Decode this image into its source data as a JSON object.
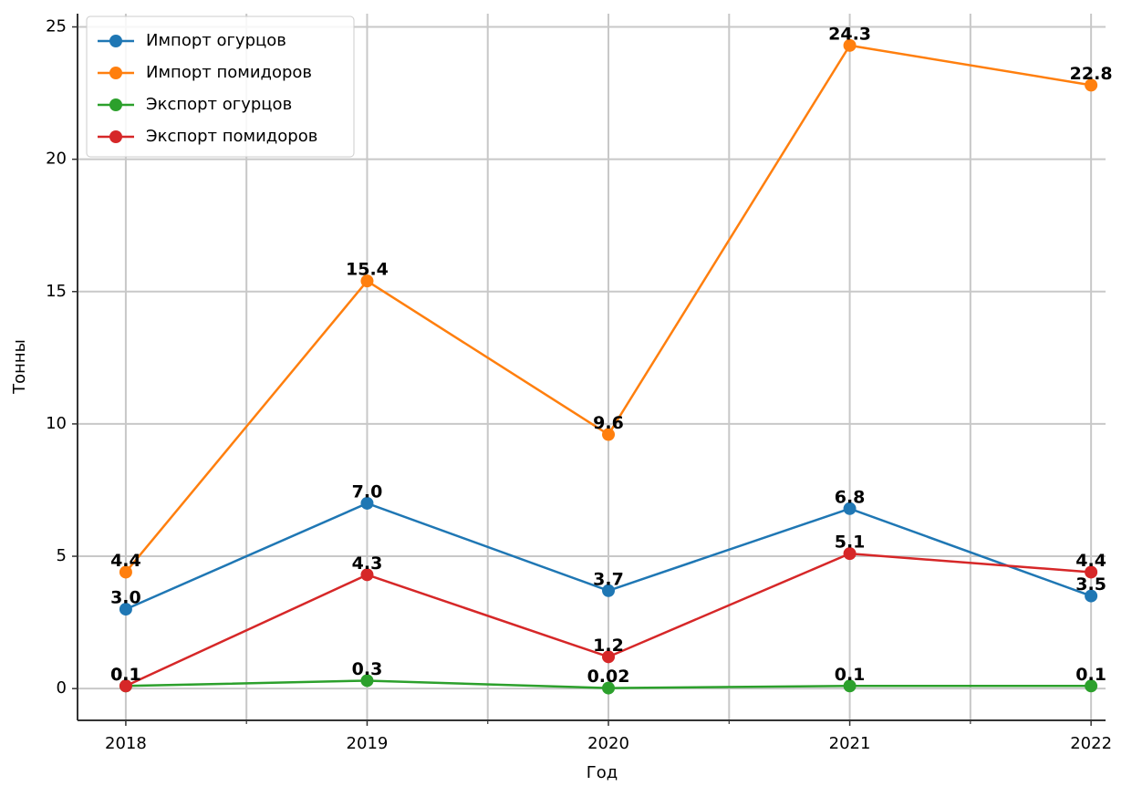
{
  "chart_data": {
    "type": "line",
    "x": [
      2018,
      2019,
      2020,
      2021,
      2022
    ],
    "xlabel": "Год",
    "ylabel": "Тонны",
    "xlim": [
      2017.8,
      2022.06
    ],
    "ylim": [
      -1.2,
      25.5
    ],
    "xticks": [
      2018,
      2019,
      2020,
      2021,
      2022
    ],
    "xminor_ticks": [
      2018.5,
      2019.5,
      2020.5,
      2021.5
    ],
    "yticks": [
      0,
      5,
      10,
      15,
      20,
      25
    ],
    "grid": true,
    "legend": "upper left",
    "series": [
      {
        "name": "Импорт огурцов",
        "color": "#1f77b4",
        "values": [
          3.0,
          7.0,
          3.7,
          6.8,
          3.5
        ],
        "value_labels": [
          "3.0",
          "7.0",
          "3.7",
          "6.8",
          "3.5"
        ]
      },
      {
        "name": "Импорт помидоров",
        "color": "#ff7f0e",
        "values": [
          4.4,
          15.4,
          9.6,
          24.3,
          22.8
        ],
        "value_labels": [
          "4.4",
          "15.4",
          "9.6",
          "24.3",
          "22.8"
        ]
      },
      {
        "name": "Экспорт огурцов",
        "color": "#2ca02c",
        "values": [
          0.1,
          0.3,
          0.02,
          0.1,
          0.1
        ],
        "value_labels": [
          "0.1",
          "0.3",
          "0.02",
          "0.1",
          "0.1"
        ]
      },
      {
        "name": "Экспорт помидоров",
        "color": "#d62728",
        "values": [
          0.1,
          4.3,
          1.2,
          5.1,
          4.4
        ],
        "value_labels": [
          "0.1",
          "4.3",
          "1.2",
          "5.1",
          "4.4"
        ]
      }
    ]
  }
}
